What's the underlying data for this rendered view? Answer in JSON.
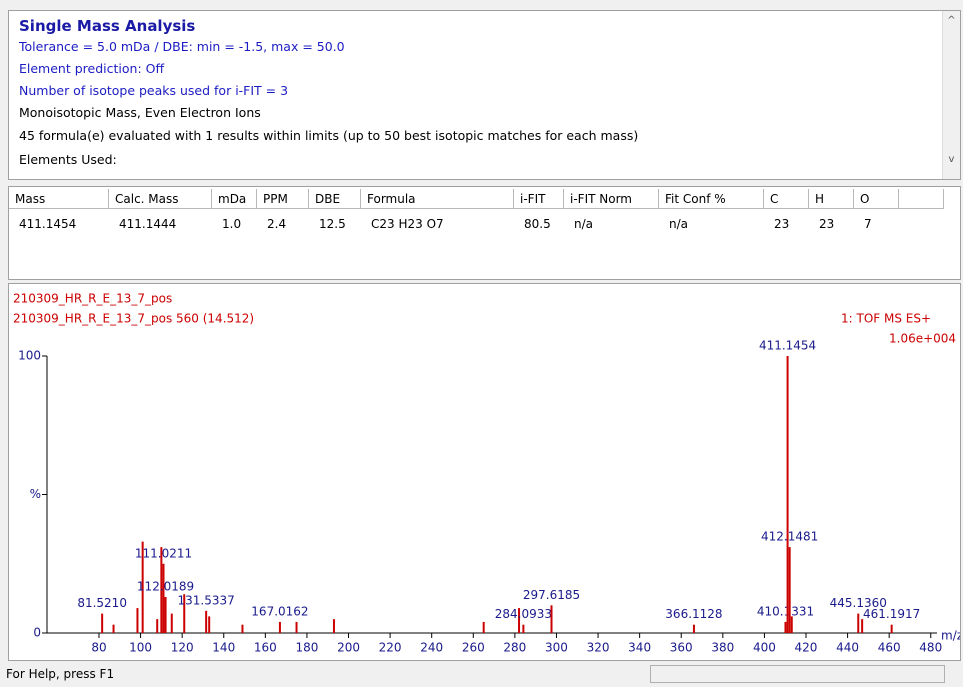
{
  "report": {
    "title": "Single Mass Analysis",
    "lines": [
      "Tolerance = 5.0 mDa  /  DBE: min = -1.5, max = 50.0",
      "Element prediction: Off",
      "Number of isotope peaks used for i-FIT = 3",
      "Monoisotopic Mass, Even Electron Ions",
      "45 formula(e) evaluated with 1 results within limits (up to 50 best isotopic matches for each mass)",
      "Elements Used:"
    ]
  },
  "table": {
    "columns": [
      "Mass",
      "Calc. Mass",
      "mDa",
      "PPM",
      "DBE",
      "Formula",
      "i-FIT",
      "i-FIT Norm",
      "Fit Conf %",
      "C",
      "H",
      "O"
    ],
    "rows": [
      [
        "411.1454",
        "411.1444",
        "1.0",
        "2.4",
        "12.5",
        "C23  H23  O7",
        "80.5",
        "n/a",
        "n/a",
        "23",
        "23",
        "7"
      ]
    ]
  },
  "spectrum": {
    "type": "stick",
    "title": "210309_HR_R_E_13_7_pos",
    "subtitle": "210309_HR_R_E_13_7_pos 560 (14.512)",
    "annotations": [
      "1: TOF MS ES+",
      "1.06e+004"
    ],
    "x_label": "m/z",
    "color": "#cc0000",
    "label_color": "#1a1a8c",
    "xlim": [
      55,
      483
    ],
    "xticks": [
      80,
      100,
      120,
      140,
      160,
      180,
      200,
      220,
      240,
      260,
      280,
      300,
      320,
      340,
      360,
      380,
      400,
      420,
      440,
      460,
      480
    ],
    "ylim": [
      0,
      100
    ],
    "yticks": [
      0,
      {
        "value": 50,
        "label": "%"
      },
      100
    ],
    "peaks": [
      {
        "mz": 81.521,
        "intensity": 7,
        "label": "81.5210"
      },
      {
        "mz": 87.0,
        "intensity": 3
      },
      {
        "mz": 98.5,
        "intensity": 9
      },
      {
        "mz": 101.0,
        "intensity": 33
      },
      {
        "mz": 108.0,
        "intensity": 5
      },
      {
        "mz": 110.0,
        "intensity": 31
      },
      {
        "mz": 111.0211,
        "intensity": 25,
        "label": "111.0211"
      },
      {
        "mz": 112.0189,
        "intensity": 13,
        "label": "112.0189"
      },
      {
        "mz": 115.0,
        "intensity": 7
      },
      {
        "mz": 121.0,
        "intensity": 14
      },
      {
        "mz": 131.5337,
        "intensity": 8,
        "label": "131.5337"
      },
      {
        "mz": 133.0,
        "intensity": 6
      },
      {
        "mz": 149.0,
        "intensity": 3
      },
      {
        "mz": 167.0162,
        "intensity": 4,
        "label": "167.0162"
      },
      {
        "mz": 175.0,
        "intensity": 4
      },
      {
        "mz": 193.0,
        "intensity": 5
      },
      {
        "mz": 265.0,
        "intensity": 4
      },
      {
        "mz": 282.0,
        "intensity": 9
      },
      {
        "mz": 284.0933,
        "intensity": 3,
        "label": "284.0933"
      },
      {
        "mz": 297.6185,
        "intensity": 10,
        "label": "297.6185"
      },
      {
        "mz": 366.1128,
        "intensity": 3,
        "label": "366.1128"
      },
      {
        "mz": 410.1331,
        "intensity": 4,
        "label": "410.1331"
      },
      {
        "mz": 411.1454,
        "intensity": 100,
        "label": "411.1454"
      },
      {
        "mz": 412.1481,
        "intensity": 31,
        "label": "412.1481"
      },
      {
        "mz": 413.15,
        "intensity": 6
      },
      {
        "mz": 445.136,
        "intensity": 7,
        "label": "445.1360"
      },
      {
        "mz": 447.0,
        "intensity": 5
      },
      {
        "mz": 461.1917,
        "intensity": 3,
        "label": "461.1917"
      }
    ]
  },
  "status": "For Help, press F1"
}
